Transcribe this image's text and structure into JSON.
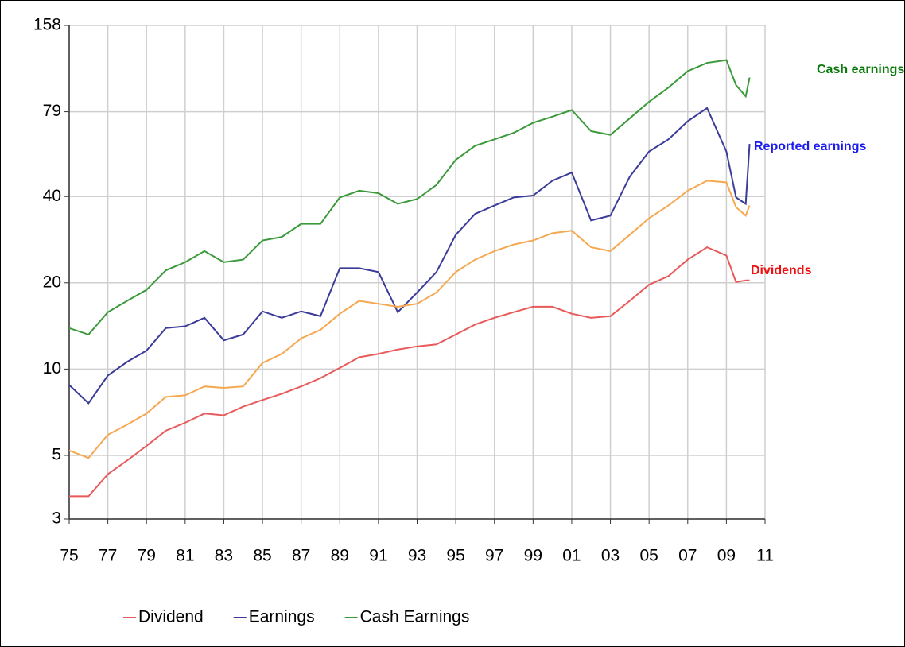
{
  "chart_data": {
    "type": "line",
    "log_scale": true,
    "grid": true,
    "x": [
      1975,
      1976,
      1977,
      1978,
      1979,
      1980,
      1981,
      1982,
      1983,
      1984,
      1985,
      1986,
      1987,
      1988,
      1989,
      1990,
      1991,
      1992,
      1993,
      1994,
      1995,
      1996,
      1997,
      1998,
      1999,
      2000,
      2001,
      2002,
      2003,
      2004,
      2005,
      2006,
      2007,
      2008,
      2009,
      2009.5,
      2010,
      2010.2
    ],
    "series": [
      {
        "name": "Dividend",
        "color": "#e85a5a",
        "values": [
          3.6,
          3.6,
          4.3,
          4.8,
          5.4,
          6.1,
          6.5,
          7.0,
          6.9,
          7.4,
          7.8,
          8.2,
          8.7,
          9.3,
          10.1,
          11.0,
          11.3,
          11.7,
          12.0,
          12.2,
          13.2,
          14.3,
          15.1,
          15.8,
          16.5,
          16.5,
          15.6,
          15.1,
          15.3,
          17.3,
          19.7,
          21.1,
          24.1,
          26.6,
          24.9,
          20.1,
          20.4,
          20.4
        ]
      },
      {
        "name": "Earnings",
        "color": "#3b3b9a",
        "values": [
          8.8,
          7.6,
          9.5,
          10.6,
          11.6,
          13.9,
          14.1,
          15.1,
          12.6,
          13.2,
          15.9,
          15.1,
          15.9,
          15.3,
          22.5,
          22.5,
          21.8,
          15.8,
          18.5,
          21.8,
          29.4,
          34.8,
          37.2,
          39.7,
          40.3,
          45.4,
          48.5,
          33.0,
          34.3,
          46.9,
          57.4,
          63.3,
          73.2,
          81.4,
          57.4,
          39.7,
          37.7,
          61
        ]
      },
      {
        "name": "Cash Earnings",
        "color": "#3a9a3a",
        "values": [
          13.9,
          13.2,
          15.8,
          17.3,
          18.9,
          22.1,
          23.6,
          25.8,
          23.6,
          24.1,
          28.1,
          28.9,
          32.1,
          32.1,
          39.7,
          41.9,
          41.1,
          37.7,
          39.2,
          43.9,
          53.7,
          60.1,
          63.3,
          66.7,
          72.3,
          75.9,
          80.1,
          67.6,
          65.6,
          74.9,
          85.6,
          95.9,
          109.5,
          117,
          119.6,
          97.8,
          89.4,
          104
        ]
      },
      {
        "color": "#f5a850",
        "values": [
          5.2,
          4.9,
          5.9,
          6.4,
          7.0,
          8.0,
          8.1,
          8.7,
          8.6,
          8.7,
          10.5,
          11.3,
          12.8,
          13.7,
          15.6,
          17.3,
          16.9,
          16.5,
          16.9,
          18.5,
          21.8,
          24.1,
          25.8,
          27.2,
          28.1,
          29.8,
          30.4,
          26.6,
          25.8,
          29.4,
          33.6,
          37.2,
          41.9,
          45.4,
          44.8,
          36.7,
          34.3,
          37.2
        ]
      }
    ],
    "xlim": [
      1975,
      2011
    ],
    "xticks": [
      {
        "value": 1975,
        "label": "75"
      },
      {
        "value": 1977,
        "label": "77"
      },
      {
        "value": 1979,
        "label": "79"
      },
      {
        "value": 1981,
        "label": "81"
      },
      {
        "value": 1983,
        "label": "83"
      },
      {
        "value": 1985,
        "label": "85"
      },
      {
        "value": 1987,
        "label": "87"
      },
      {
        "value": 1989,
        "label": "89"
      },
      {
        "value": 1991,
        "label": "91"
      },
      {
        "value": 1993,
        "label": "93"
      },
      {
        "value": 1995,
        "label": "95"
      },
      {
        "value": 1997,
        "label": "97"
      },
      {
        "value": 1999,
        "label": "99"
      },
      {
        "value": 2001,
        "label": "01"
      },
      {
        "value": 2003,
        "label": "03"
      },
      {
        "value": 2005,
        "label": "05"
      },
      {
        "value": 2007,
        "label": "07"
      },
      {
        "value": 2009,
        "label": "09"
      },
      {
        "value": 2011,
        "label": "11"
      }
    ],
    "ylim": [
      3,
      158
    ],
    "yticks": [
      3,
      5,
      10,
      20,
      40,
      79,
      158
    ],
    "annotations": [
      {
        "text": "Cash earnings",
        "color": "#0a7a0a"
      },
      {
        "text": "Reported earnings",
        "color": "#1a1aee"
      },
      {
        "text": "Dividends",
        "color": "#ee1111"
      }
    ]
  }
}
